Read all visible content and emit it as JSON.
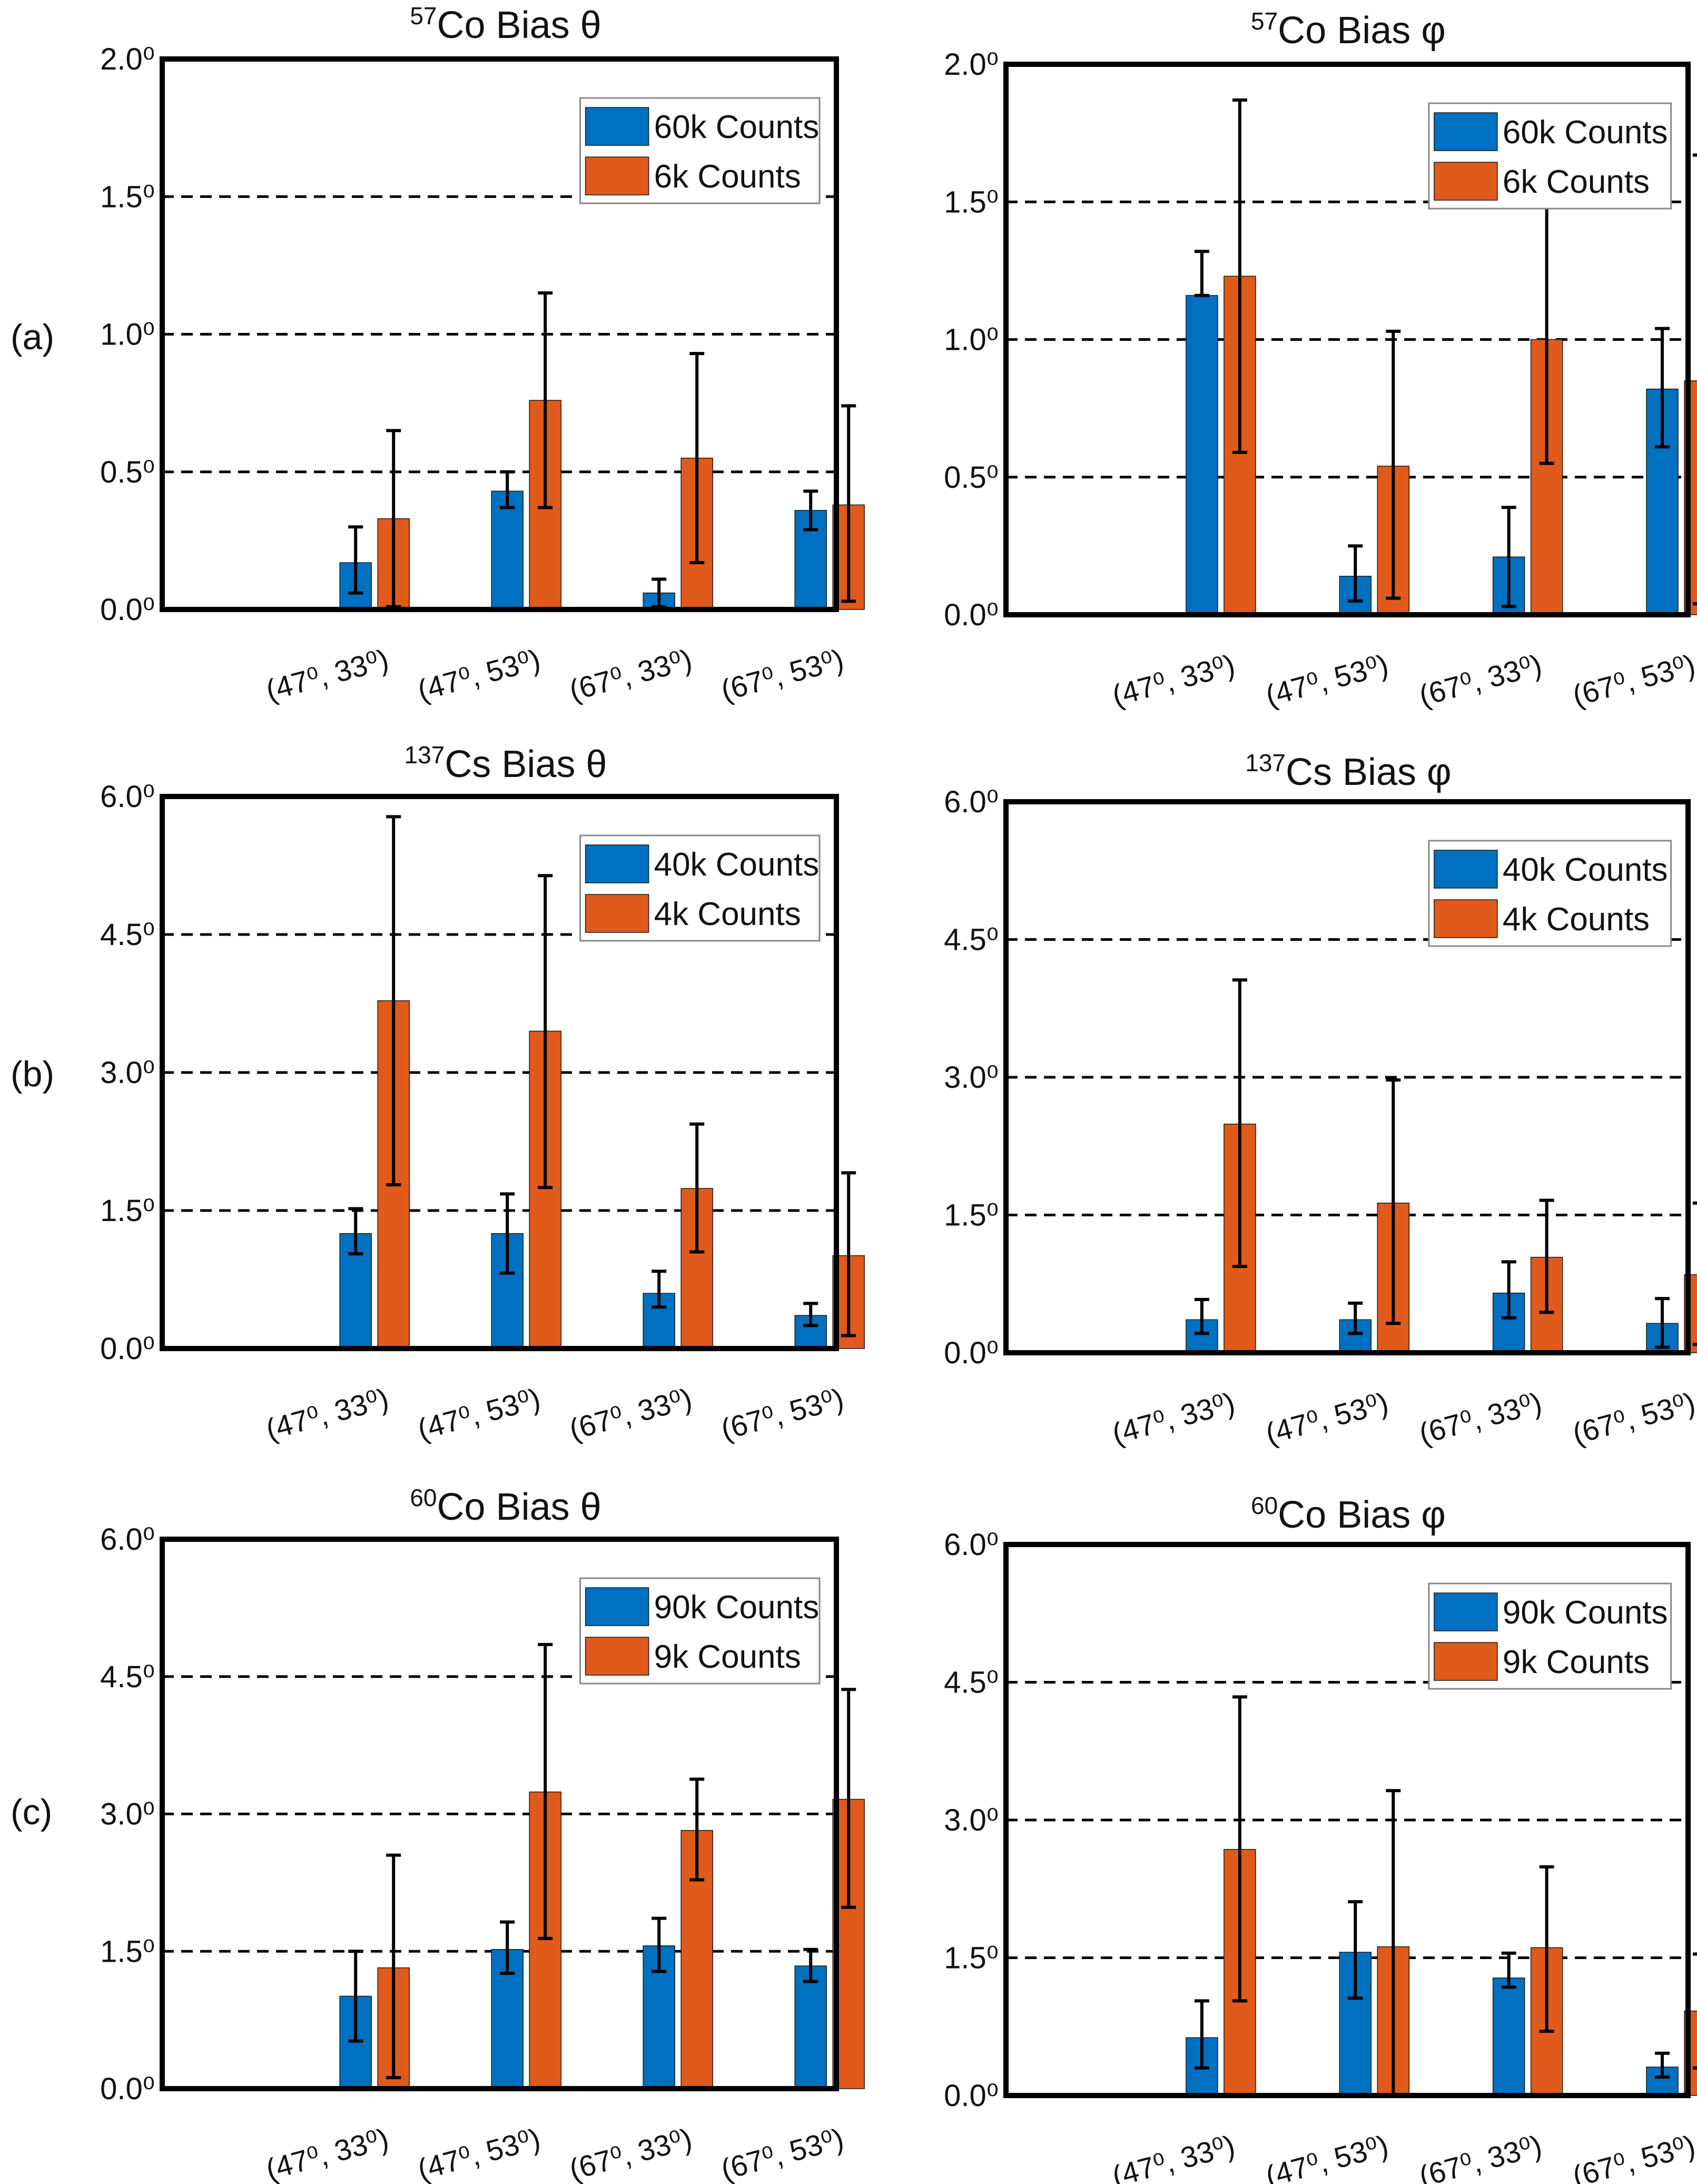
{
  "colors": {
    "blue": "#0070C0",
    "orange": "#E05A1C",
    "axis": "#000000",
    "text": "#111111"
  },
  "row_labels": [
    "(a)",
    "(b)",
    "(c)"
  ],
  "chart_data": [
    {
      "type": "bar",
      "panel": "a-theta",
      "title": {
        "sup": "57",
        "iso": "Co",
        "rest": " Bias θ"
      },
      "categories": [
        "(47⁰, 33⁰)",
        "(47⁰, 53⁰)",
        "(67⁰, 33⁰)",
        "(67⁰, 53⁰)"
      ],
      "ylim": [
        0,
        2
      ],
      "yticks": [
        "0.0⁰",
        "0.5⁰",
        "1.0⁰",
        "1.5⁰",
        "2.0⁰"
      ],
      "yticks_values": [
        0,
        0.5,
        1.0,
        1.5,
        2.0
      ],
      "dashed_lines": [
        0.5,
        1.0,
        1.5
      ],
      "legend_position": "top-right",
      "series": [
        {
          "name": "60k Counts",
          "color": "blue",
          "values": [
            0.17,
            0.43,
            0.06,
            0.36
          ],
          "err_lo": [
            0.06,
            0.37,
            0.01,
            0.29
          ],
          "err_hi": [
            0.3,
            0.5,
            0.11,
            0.43
          ]
        },
        {
          "name": "6k Counts",
          "color": "orange",
          "values": [
            0.33,
            0.76,
            0.55,
            0.38
          ],
          "err_lo": [
            0.01,
            0.37,
            0.17,
            0.03
          ],
          "err_hi": [
            0.65,
            1.15,
            0.93,
            0.74
          ]
        }
      ]
    },
    {
      "type": "bar",
      "panel": "a-phi",
      "title": {
        "sup": "57",
        "iso": "Co",
        "rest": " Bias φ"
      },
      "categories": [
        "(47⁰, 33⁰)",
        "(47⁰, 53⁰)",
        "(67⁰, 33⁰)",
        "(67⁰, 53⁰)"
      ],
      "ylim": [
        0,
        2
      ],
      "yticks": [
        "0.0⁰",
        "0.5⁰",
        "1.0⁰",
        "1.5⁰",
        "2.0⁰"
      ],
      "yticks_values": [
        0,
        0.5,
        1.0,
        1.5,
        2.0
      ],
      "dashed_lines": [
        0.5,
        1.0,
        1.5
      ],
      "legend_position": "top-right",
      "series": [
        {
          "name": "60k Counts",
          "color": "blue",
          "values": [
            1.16,
            0.14,
            0.21,
            0.82
          ],
          "err_lo": [
            1.16,
            0.05,
            0.03,
            0.61
          ],
          "err_hi": [
            1.32,
            0.25,
            0.39,
            1.04
          ]
        },
        {
          "name": "6k Counts",
          "color": "orange",
          "values": [
            1.23,
            0.54,
            1.0,
            0.85
          ],
          "err_lo": [
            0.59,
            0.06,
            0.55,
            0.04
          ],
          "err_hi": [
            1.87,
            1.03,
            1.48,
            1.67
          ]
        }
      ]
    },
    {
      "type": "bar",
      "panel": "b-theta",
      "title": {
        "sup": "137",
        "iso": "Cs",
        "rest": " Bias θ"
      },
      "categories": [
        "(47⁰, 33⁰)",
        "(47⁰, 53⁰)",
        "(67⁰, 33⁰)",
        "(67⁰, 53⁰)"
      ],
      "ylim": [
        0,
        6
      ],
      "yticks": [
        "0.0⁰",
        "1.5⁰",
        "3.0⁰",
        "4.5⁰",
        "6.0⁰"
      ],
      "yticks_values": [
        0,
        1.5,
        3.0,
        4.5,
        6.0
      ],
      "dashed_lines": [
        1.5,
        3.0,
        4.5
      ],
      "legend_position": "top-right",
      "series": [
        {
          "name": "40k Counts",
          "color": "blue",
          "values": [
            1.25,
            1.25,
            0.6,
            0.36
          ],
          "err_lo": [
            1.03,
            0.82,
            0.45,
            0.25
          ],
          "err_hi": [
            1.52,
            1.68,
            0.84,
            0.49
          ]
        },
        {
          "name": "4k Counts",
          "color": "orange",
          "values": [
            3.78,
            3.45,
            1.74,
            1.01
          ],
          "err_lo": [
            1.78,
            1.75,
            1.05,
            0.14
          ],
          "err_hi": [
            5.78,
            5.14,
            2.44,
            1.91
          ]
        }
      ]
    },
    {
      "type": "bar",
      "panel": "b-phi",
      "title": {
        "sup": "137",
        "iso": "Cs",
        "rest": " Bias φ"
      },
      "categories": [
        "(47⁰, 33⁰)",
        "(47⁰, 53⁰)",
        "(67⁰, 33⁰)",
        "(67⁰, 53⁰)"
      ],
      "ylim": [
        0,
        6
      ],
      "yticks": [
        "0.0⁰",
        "1.5⁰",
        "3.0⁰",
        "4.5⁰",
        "6.0⁰"
      ],
      "yticks_values": [
        0,
        1.5,
        3.0,
        4.5,
        6.0
      ],
      "dashed_lines": [
        1.5,
        3.0,
        4.5
      ],
      "legend_position": "top-right",
      "series": [
        {
          "name": "40k Counts",
          "color": "blue",
          "values": [
            0.36,
            0.36,
            0.65,
            0.32
          ],
          "err_lo": [
            0.21,
            0.21,
            0.38,
            0.06
          ],
          "err_hi": [
            0.58,
            0.54,
            0.99,
            0.59
          ]
        },
        {
          "name": "4k Counts",
          "color": "orange",
          "values": [
            2.49,
            1.63,
            1.04,
            0.85
          ],
          "err_lo": [
            0.94,
            0.32,
            0.44,
            0.09
          ],
          "err_hi": [
            4.06,
            2.97,
            1.66,
            1.63
          ]
        }
      ]
    },
    {
      "type": "bar",
      "panel": "c-theta",
      "title": {
        "sup": "60",
        "iso": "Co",
        "rest": " Bias θ"
      },
      "categories": [
        "(47⁰, 33⁰)",
        "(47⁰, 53⁰)",
        "(67⁰, 33⁰)",
        "(67⁰, 53⁰)"
      ],
      "ylim": [
        0,
        6
      ],
      "yticks": [
        "0.0⁰",
        "1.5⁰",
        "3.0⁰",
        "4.5⁰",
        "6.0⁰"
      ],
      "yticks_values": [
        0,
        1.5,
        3.0,
        4.5,
        6.0
      ],
      "dashed_lines": [
        1.5,
        3.0,
        4.5
      ],
      "legend_position": "top-right",
      "series": [
        {
          "name": "90k Counts",
          "color": "blue",
          "values": [
            1.01,
            1.52,
            1.56,
            1.34
          ],
          "err_lo": [
            0.52,
            1.26,
            1.28,
            1.17
          ],
          "err_hi": [
            1.5,
            1.82,
            1.86,
            1.52
          ]
        },
        {
          "name": "9k Counts",
          "color": "orange",
          "values": [
            1.32,
            3.24,
            2.82,
            3.16
          ],
          "err_lo": [
            0.12,
            1.64,
            2.28,
            1.98
          ],
          "err_hi": [
            2.55,
            4.85,
            3.38,
            4.36
          ]
        }
      ]
    },
    {
      "type": "bar",
      "panel": "c-phi",
      "title": {
        "sup": "60",
        "iso": "Co",
        "rest": " Bias φ"
      },
      "categories": [
        "(47⁰, 33⁰)",
        "(47⁰, 53⁰)",
        "(67⁰, 33⁰)",
        "(67⁰, 53⁰)"
      ],
      "ylim": [
        0,
        6
      ],
      "yticks": [
        "0.0⁰",
        "1.5⁰",
        "3.0⁰",
        "4.5⁰",
        "6.0⁰"
      ],
      "yticks_values": [
        0,
        1.5,
        3.0,
        4.5,
        6.0
      ],
      "dashed_lines": [
        1.5,
        3.0,
        4.5
      ],
      "legend_position": "top-right",
      "series": [
        {
          "name": "90k Counts",
          "color": "blue",
          "values": [
            0.63,
            1.56,
            1.28,
            0.31
          ],
          "err_lo": [
            0.3,
            1.06,
            1.18,
            0.2
          ],
          "err_hi": [
            1.03,
            2.11,
            1.55,
            0.46
          ]
        },
        {
          "name": "9k Counts",
          "color": "orange",
          "values": [
            2.68,
            1.62,
            1.61,
            0.92
          ],
          "err_lo": [
            1.03,
            0.01,
            0.7,
            0.3
          ],
          "err_hi": [
            4.34,
            3.32,
            2.49,
            1.54
          ]
        }
      ]
    }
  ]
}
